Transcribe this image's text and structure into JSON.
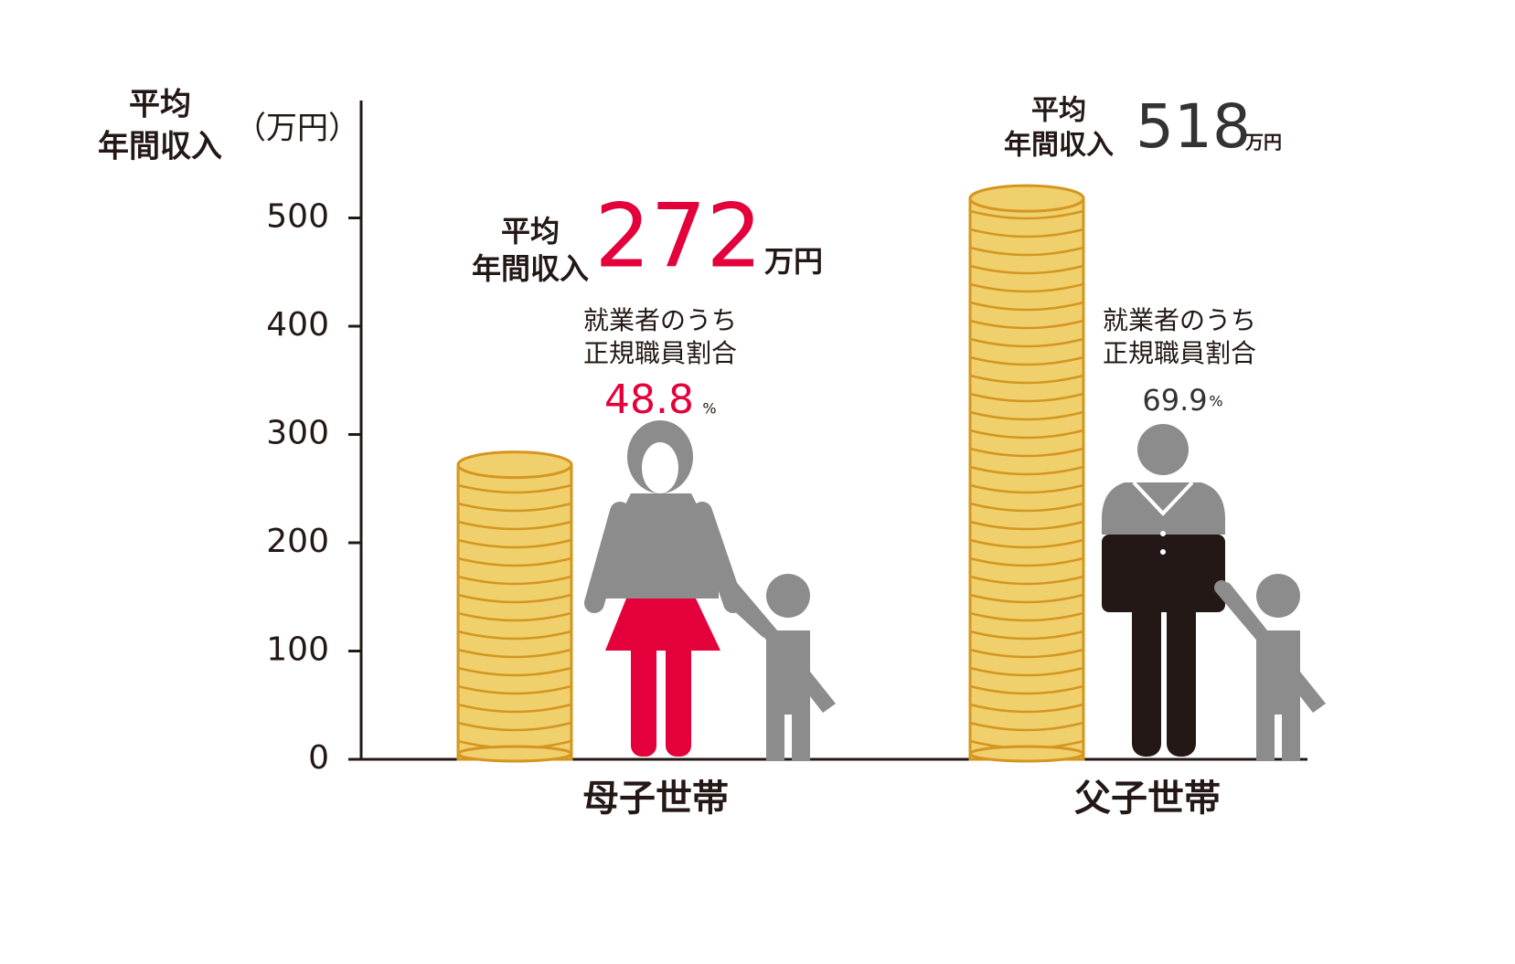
{
  "chart_data": {
    "type": "coin-bar",
    "y_label": [
      "平均",
      "年間収入"
    ],
    "y_unit": "（万円）",
    "categories": [
      "母子世帯",
      "父子世帯"
    ],
    "values": [
      272,
      518
    ],
    "value_unit": "万円",
    "value_prefix": [
      "平均",
      "年間収入"
    ],
    "ratio_label": [
      "就業者のうち",
      "正規職員割合"
    ],
    "ratio_values": [
      48.8,
      69.9
    ],
    "ratio_unit": "%",
    "accent_colors": [
      "#e4003a",
      "#333333"
    ],
    "coin_color": "#f0cf6d",
    "coin_edge": "#d4961f",
    "ylim": [
      0,
      600
    ],
    "yticks": [
      0,
      100,
      200,
      300,
      400,
      500
    ]
  }
}
